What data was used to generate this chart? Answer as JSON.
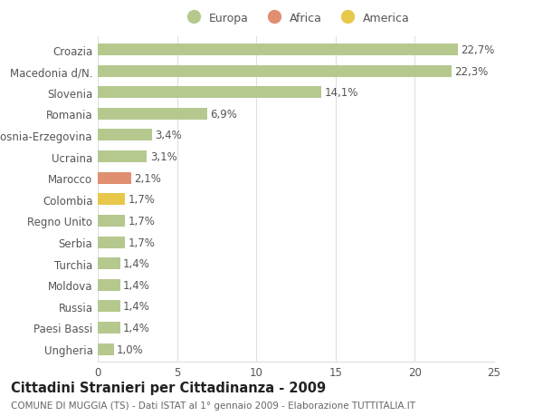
{
  "categories": [
    "Ungheria",
    "Paesi Bassi",
    "Russia",
    "Moldova",
    "Turchia",
    "Serbia",
    "Regno Unito",
    "Colombia",
    "Marocco",
    "Ucraina",
    "Bosnia-Erzegovina",
    "Romania",
    "Slovenia",
    "Macedonia d/N.",
    "Croazia"
  ],
  "values": [
    1.0,
    1.4,
    1.4,
    1.4,
    1.4,
    1.7,
    1.7,
    1.7,
    2.1,
    3.1,
    3.4,
    6.9,
    14.1,
    22.3,
    22.7
  ],
  "labels": [
    "1,0%",
    "1,4%",
    "1,4%",
    "1,4%",
    "1,4%",
    "1,7%",
    "1,7%",
    "1,7%",
    "2,1%",
    "3,1%",
    "3,4%",
    "6,9%",
    "14,1%",
    "22,3%",
    "22,7%"
  ],
  "bar_colors": [
    "#b5c98e",
    "#b5c98e",
    "#b5c98e",
    "#b5c98e",
    "#b5c98e",
    "#b5c98e",
    "#b5c98e",
    "#e8c84a",
    "#e09070",
    "#b5c98e",
    "#b5c98e",
    "#b5c98e",
    "#b5c98e",
    "#b5c98e",
    "#b5c98e"
  ],
  "legend_items": [
    {
      "label": "Europa",
      "color": "#b5c98e"
    },
    {
      "label": "Africa",
      "color": "#e09070"
    },
    {
      "label": "America",
      "color": "#e8c84a"
    }
  ],
  "xlim": [
    0,
    25
  ],
  "xticks": [
    0,
    5,
    10,
    15,
    20,
    25
  ],
  "title": "Cittadini Stranieri per Cittadinanza - 2009",
  "subtitle": "COMUNE DI MUGGIA (TS) - Dati ISTAT al 1° gennaio 2009 - Elaborazione TUTTITALIA.IT",
  "background_color": "#ffffff",
  "grid_color": "#e0e0e0",
  "bar_height": 0.55,
  "label_fontsize": 8.5,
  "tick_fontsize": 8.5,
  "title_fontsize": 10.5,
  "subtitle_fontsize": 7.5,
  "legend_fontsize": 9
}
